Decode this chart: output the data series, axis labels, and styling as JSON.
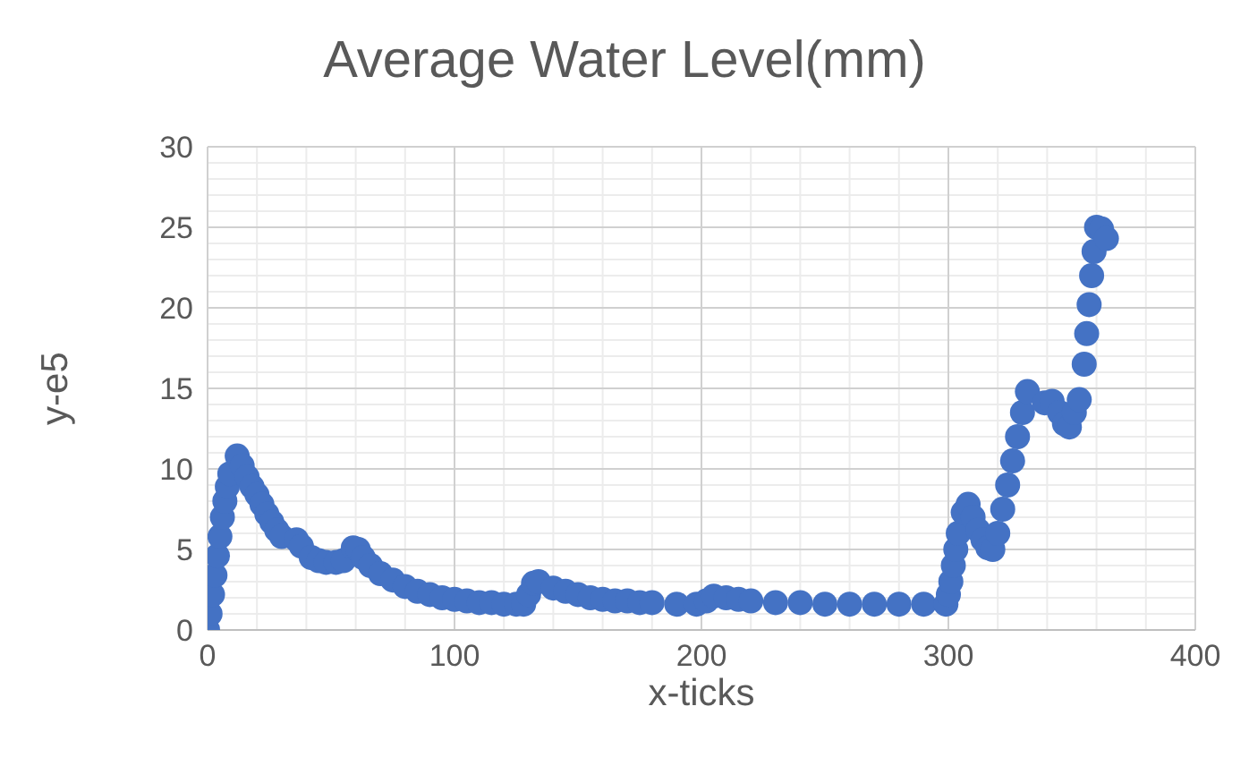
{
  "chart_data": {
    "type": "scatter",
    "title": "Average Water Level(mm)",
    "xlabel": "x-ticks",
    "ylabel": "y-e5",
    "marker": "circle",
    "grid": true,
    "legend": false,
    "xlim": [
      0,
      400
    ],
    "ylim": [
      0,
      30
    ],
    "xticks": [
      0,
      {
        "value": 20,
        "label": null
      },
      {
        "value": 40,
        "label": null
      },
      {
        "value": 60,
        "label": null
      },
      {
        "value": 80,
        "label": null
      },
      100,
      {
        "value": 120,
        "label": null
      },
      {
        "value": 140,
        "label": null
      },
      {
        "value": 160,
        "label": null
      },
      {
        "value": 180,
        "label": null
      },
      200,
      {
        "value": 220,
        "label": null
      },
      {
        "value": 240,
        "label": null
      },
      {
        "value": 260,
        "label": null
      },
      {
        "value": 280,
        "label": null
      },
      300,
      {
        "value": 320,
        "label": null
      },
      {
        "value": 340,
        "label": null
      },
      {
        "value": 360,
        "label": null
      },
      {
        "value": 380,
        "label": null
      },
      400
    ],
    "yticks": [
      0,
      {
        "value": 1,
        "label": null
      },
      {
        "value": 2,
        "label": null
      },
      {
        "value": 3,
        "label": null
      },
      {
        "value": 4,
        "label": null
      },
      5,
      {
        "value": 6,
        "label": null
      },
      {
        "value": 7,
        "label": null
      },
      {
        "value": 8,
        "label": null
      },
      {
        "value": 9,
        "label": null
      },
      10,
      {
        "value": 11,
        "label": null
      },
      {
        "value": 12,
        "label": null
      },
      {
        "value": 13,
        "label": null
      },
      {
        "value": 14,
        "label": null
      },
      15,
      {
        "value": 16,
        "label": null
      },
      {
        "value": 17,
        "label": null
      },
      {
        "value": 18,
        "label": null
      },
      {
        "value": 19,
        "label": null
      },
      20,
      {
        "value": 21,
        "label": null
      },
      {
        "value": 22,
        "label": null
      },
      {
        "value": 23,
        "label": null
      },
      {
        "value": 24,
        "label": null
      },
      25,
      {
        "value": 26,
        "label": null
      },
      {
        "value": 27,
        "label": null
      },
      {
        "value": 28,
        "label": null
      },
      {
        "value": 29,
        "label": null
      },
      30
    ],
    "series": [
      {
        "color": "#4472c4",
        "x": [
          0,
          1,
          2,
          3,
          4,
          5,
          6,
          7,
          8,
          9,
          12,
          14,
          16,
          18,
          20,
          22,
          24,
          26,
          28,
          30,
          36,
          38,
          42,
          45,
          48,
          52,
          55,
          59,
          61,
          63,
          66,
          70,
          75,
          80,
          85,
          90,
          95,
          100,
          105,
          110,
          115,
          120,
          125,
          128,
          130,
          132,
          134,
          140,
          145,
          150,
          155,
          160,
          165,
          170,
          175,
          180,
          190,
          198,
          202,
          205,
          210,
          215,
          220,
          230,
          240,
          250,
          260,
          270,
          280,
          290,
          299,
          300,
          301,
          302,
          303,
          304,
          306,
          308,
          310,
          312,
          314,
          316,
          318,
          320,
          322,
          324,
          326,
          328,
          330,
          332,
          339,
          342,
          345,
          347,
          349,
          351,
          353,
          355,
          356,
          357,
          358,
          359,
          360,
          362,
          364
        ],
        "values": [
          0,
          1,
          2.2,
          3.4,
          4.6,
          5.8,
          7,
          8,
          8.9,
          9.7,
          10.8,
          10.2,
          9.5,
          8.9,
          8.4,
          7.8,
          7.2,
          6.7,
          6.2,
          5.8,
          5.6,
          5.2,
          4.5,
          4.3,
          4.2,
          4.2,
          4.3,
          5.1,
          5.0,
          4.5,
          4.0,
          3.5,
          3.1,
          2.7,
          2.4,
          2.2,
          2.0,
          1.9,
          1.8,
          1.7,
          1.7,
          1.6,
          1.6,
          1.6,
          2.2,
          2.9,
          3.0,
          2.6,
          2.4,
          2.2,
          2.0,
          1.9,
          1.8,
          1.8,
          1.7,
          1.7,
          1.6,
          1.6,
          1.8,
          2.1,
          2.0,
          1.9,
          1.8,
          1.7,
          1.7,
          1.6,
          1.6,
          1.6,
          1.6,
          1.6,
          1.6,
          2.2,
          3.0,
          4.0,
          5.0,
          6.0,
          7.3,
          7.8,
          7.0,
          6.2,
          5.6,
          5.1,
          5.0,
          6.0,
          7.5,
          9.0,
          10.5,
          12.0,
          13.5,
          14.8,
          14.1,
          14.2,
          13.5,
          12.8,
          12.6,
          13.5,
          14.3,
          16.5,
          18.4,
          20.2,
          22,
          23.5,
          25,
          24.9,
          24.3
        ]
      }
    ]
  }
}
